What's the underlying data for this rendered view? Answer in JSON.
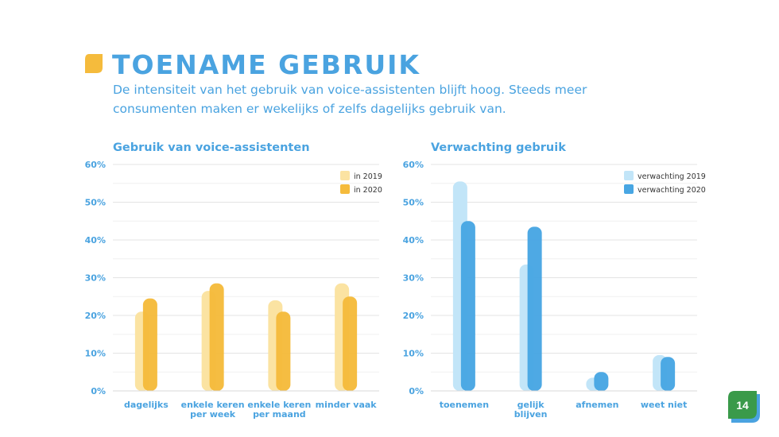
{
  "slide": {
    "title": "TOENAME GEBRUIK",
    "subtitle": "De intensiteit van het gebruik van voice-assistenten blijft hoog. Steeds meer consumenten maken er wekelijks of zelfs dagelijks gebruik van.",
    "page_number": "14",
    "title_icon": "leaf-icon",
    "accent_color": "#4aa3e0"
  },
  "chart_data": [
    {
      "type": "bar",
      "title": "Gebruik van voice-assistenten",
      "categories": [
        "dagelijks",
        "enkele keren per week",
        "enkele keren per maand",
        "minder vaak"
      ],
      "category_lines": [
        [
          "dagelijks"
        ],
        [
          "enkele keren",
          "per week"
        ],
        [
          "enkele keren",
          "per maand"
        ],
        [
          "minder vaak"
        ]
      ],
      "series": [
        {
          "name": "in 2019",
          "values": [
            21,
            26.5,
            24,
            28.5
          ],
          "color": "#fbe3a2"
        },
        {
          "name": "in 2020",
          "values": [
            24.5,
            28.5,
            21,
            25
          ],
          "color": "#f5bb3c"
        }
      ],
      "ylim": [
        0,
        60
      ],
      "yticks": [
        "0%",
        "10%",
        "20%",
        "30%",
        "40%",
        "50%",
        "60%"
      ],
      "legend": "top-right",
      "grid": true
    },
    {
      "type": "bar",
      "title": "Verwachting gebruik",
      "categories": [
        "toenemen",
        "gelijk blijven",
        "afnemen",
        "weet niet"
      ],
      "category_lines": [
        [
          "toenemen"
        ],
        [
          "gelijk",
          "blijven"
        ],
        [
          "afnemen"
        ],
        [
          "weet niet"
        ]
      ],
      "series": [
        {
          "name": "verwachting 2019",
          "values": [
            55.5,
            33.5,
            3.5,
            9.5
          ],
          "color": "#c2e5f8"
        },
        {
          "name": "verwachting 2020",
          "values": [
            45,
            43.5,
            5,
            9
          ],
          "color": "#48a6e3"
        }
      ],
      "ylim": [
        0,
        60
      ],
      "yticks": [
        "0%",
        "10%",
        "20%",
        "30%",
        "40%",
        "50%",
        "60%"
      ],
      "legend": "top-right",
      "grid": true
    }
  ]
}
